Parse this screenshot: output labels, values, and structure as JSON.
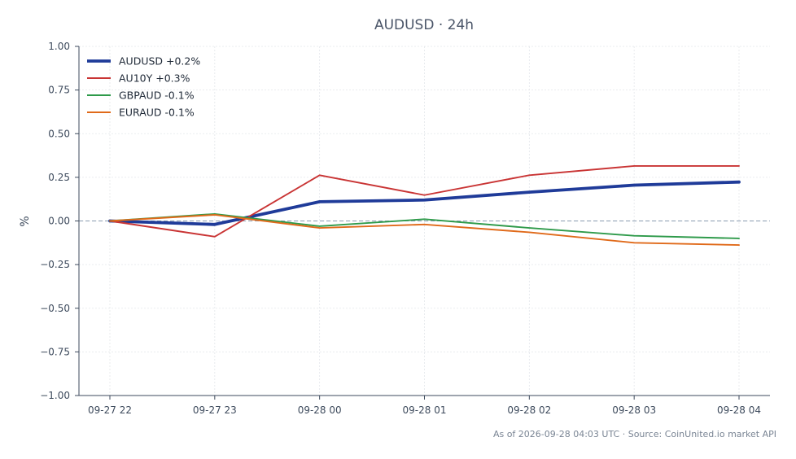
{
  "chart_data": {
    "type": "line",
    "title": "AUDUSD · 24h",
    "ylabel": "%",
    "xlabel": "",
    "ylim": [
      -1.0,
      1.0
    ],
    "yticks": [
      "1.00",
      "0.75",
      "0.50",
      "0.25",
      "0.00",
      "−0.25",
      "−0.50",
      "−0.75",
      "−1.00"
    ],
    "ytick_values": [
      1.0,
      0.75,
      0.5,
      0.25,
      0.0,
      -0.25,
      -0.5,
      -0.75,
      -1.0
    ],
    "categories": [
      "09-27 22",
      "09-27 23",
      "09-28 00",
      "09-28 01",
      "09-28 02",
      "09-28 03",
      "09-28 04"
    ],
    "grid": true,
    "legend_position": "top-left",
    "zero_line": true,
    "series": [
      {
        "name": "AUDUSD +0.2%",
        "color": "#1f3b99",
        "values": [
          0.0,
          -0.02,
          0.11,
          0.12,
          0.165,
          0.205,
          0.223
        ]
      },
      {
        "name": "AU10Y +0.3%",
        "color": "#c93434",
        "values": [
          0.0,
          -0.09,
          0.262,
          0.148,
          0.262,
          0.315,
          0.315
        ]
      },
      {
        "name": "GBPAUD -0.1%",
        "color": "#2e9a4a",
        "values": [
          0.0,
          0.04,
          -0.03,
          0.01,
          -0.04,
          -0.085,
          -0.1
        ]
      },
      {
        "name": "EURAUD -0.1%",
        "color": "#e06a1a",
        "values": [
          0.0,
          0.035,
          -0.04,
          -0.02,
          -0.065,
          -0.125,
          -0.138
        ]
      }
    ]
  },
  "footer": "As of 2026-09-28 04:03 UTC · Source: CoinUnited.io market API"
}
